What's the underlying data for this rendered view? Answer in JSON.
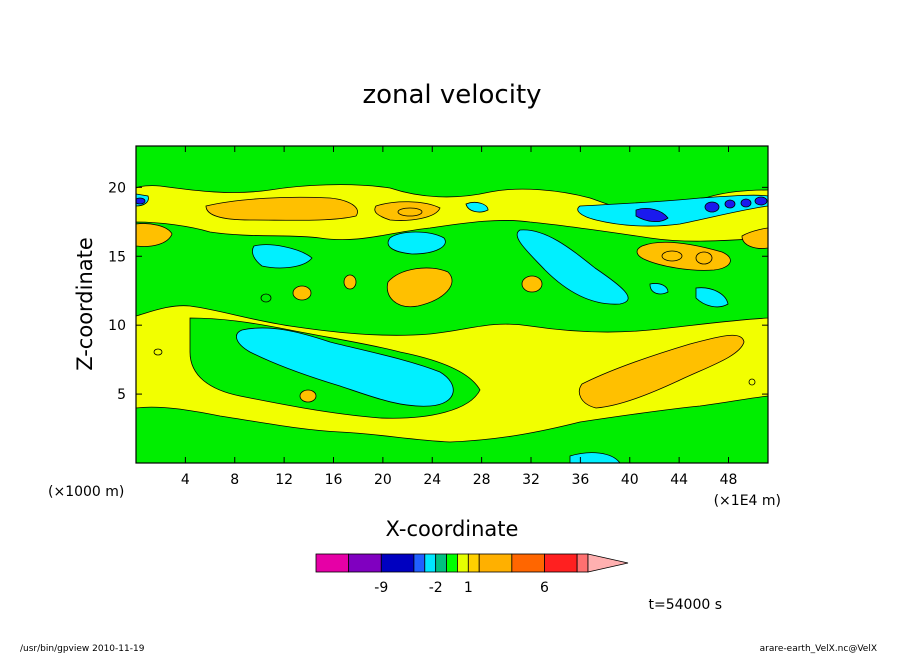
{
  "chart_data": {
    "type": "heatmap",
    "title": "zonal velocity",
    "xlabel": "X-coordinate",
    "ylabel": "Z-coordinate",
    "x_unit_left": "(×1000 m)",
    "x_unit_right": "(×1E4 m)",
    "x_ticks": [
      "4",
      "8",
      "12",
      "16",
      "20",
      "24",
      "28",
      "32",
      "36",
      "40",
      "44",
      "48"
    ],
    "x_tick_values": [
      4,
      8,
      12,
      16,
      20,
      24,
      28,
      32,
      36,
      40,
      44,
      48
    ],
    "y_ticks": [
      "5",
      "10",
      "15",
      "20"
    ],
    "y_tick_values": [
      5,
      10,
      15,
      20
    ],
    "xlim": [
      0,
      51.2
    ],
    "ylim": [
      0,
      23
    ],
    "colorbar": {
      "levels": [
        -12,
        -9,
        -6,
        -3,
        -2,
        -1,
        0,
        1,
        2,
        3,
        6,
        9,
        12
      ],
      "colors": [
        "#e600a6",
        "#8000c0",
        "#0000c0",
        "#2060ff",
        "#00e6ff",
        "#00c080",
        "#00ff00",
        "#e6ff00",
        "#ffd000",
        "#ffb000",
        "#ff6600",
        "#ff2020",
        "#ff7070",
        "#ffb0b0"
      ],
      "labels": [
        "-9",
        "-2",
        "1",
        "6"
      ],
      "label_values": [
        -9,
        -2,
        1,
        6
      ]
    },
    "field_colors": {
      "cyan": "#00f0ff",
      "green": "#00ee00",
      "yellow": "#f2ff00",
      "orange": "#ffc000",
      "blue": "#1a1aee"
    },
    "time_label": "t=54000 s"
  },
  "footer": {
    "left": "/usr/bin/gpview   2010-11-19",
    "right": "arare-earth_VelX.nc@VelX"
  }
}
